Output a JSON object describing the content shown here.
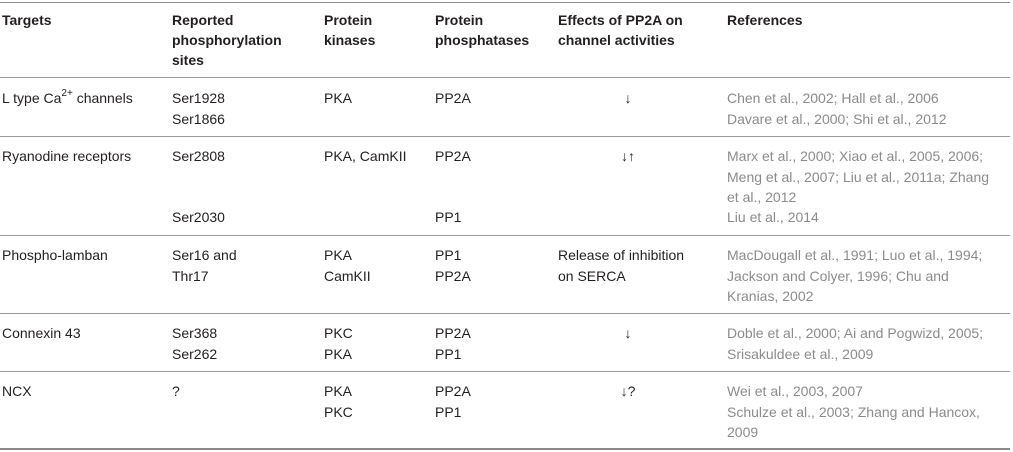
{
  "headers": {
    "targets": "Targets",
    "sites": [
      "Reported",
      "phosphorylation",
      "sites"
    ],
    "kinases": [
      "Protein",
      "kinases"
    ],
    "phosphatases": [
      "Protein",
      "phosphatases"
    ],
    "effects": [
      "Effects of PP2A on",
      "channel activities"
    ],
    "references": "References"
  },
  "rows": {
    "ltype": {
      "target_pre": "L type Ca",
      "target_sup": "2+",
      "target_post": " channels",
      "sites": [
        "Ser1928",
        "Ser1866"
      ],
      "kinases": [
        "PKA"
      ],
      "phosphatases": [
        "PP2A"
      ],
      "effect": "↓",
      "references": [
        "Chen et al., 2002; Hall et al., 2006",
        "Davare et al., 2000; Shi et al., 2012"
      ]
    },
    "ryr": {
      "target": "Ryanodine receptors",
      "sites_a": "Ser2808",
      "sites_b": "Ser2030",
      "kinases": "PKA, CamKII",
      "phosphatases_a": "PP2A",
      "phosphatases_b": "PP1",
      "effect": "↓↑",
      "references_a": [
        "Marx et al., 2000; Xiao et al., 2005, 2006;",
        "Meng et al., 2007; Liu et al., 2011a; Zhang",
        "et al., 2012"
      ],
      "references_b": "Liu et al., 2014"
    },
    "plb": {
      "target": "Phospho-lamban",
      "sites": [
        "Ser16 and",
        "Thr17"
      ],
      "kinases": [
        "PKA",
        "CamKII"
      ],
      "phosphatases": [
        "PP1",
        "PP2A"
      ],
      "effect": [
        "Release of inhibition",
        "on SERCA"
      ],
      "references": [
        "MacDougall et al., 1991; Luo et al., 1994;",
        "Jackson and Colyer, 1996; Chu and",
        "Kranias, 2002"
      ]
    },
    "cx43": {
      "target": "Connexin 43",
      "sites": [
        "Ser368",
        "Ser262"
      ],
      "kinases": [
        "PKC",
        "PKA"
      ],
      "phosphatases": [
        "PP2A",
        "PP1"
      ],
      "effect": "↓",
      "references": [
        "Doble et al., 2000; Ai and Pogwizd, 2005;",
        "Srisakuldee et al., 2009"
      ]
    },
    "ncx": {
      "target": "NCX",
      "sites": "?",
      "kinases": [
        "PKA",
        "PKC"
      ],
      "phosphatases": [
        "PP2A",
        "PP1"
      ],
      "effect": "↓?",
      "references": [
        "Wei et al., 2003, 2007",
        "Schulze et al., 2003; Zhang and Hancox,",
        "2009"
      ]
    }
  }
}
